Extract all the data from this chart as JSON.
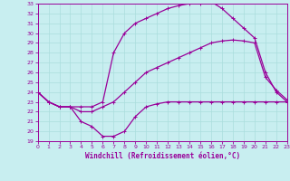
{
  "xlabel": "Windchill (Refroidissement éolien,°C)",
  "bg_color": "#c8eef0",
  "line_color": "#990099",
  "grid_color": "#aadddd",
  "xlim": [
    0,
    23
  ],
  "ylim": [
    19,
    33
  ],
  "xticks": [
    0,
    1,
    2,
    3,
    4,
    5,
    6,
    7,
    8,
    9,
    10,
    11,
    12,
    13,
    14,
    15,
    16,
    17,
    18,
    19,
    20,
    21,
    22,
    23
  ],
  "yticks": [
    19,
    20,
    21,
    22,
    23,
    24,
    25,
    26,
    27,
    28,
    29,
    30,
    31,
    32,
    33
  ],
  "line1_x": [
    0,
    1,
    2,
    3,
    4,
    5,
    6,
    7,
    8,
    9,
    10,
    11,
    12,
    13,
    14,
    15,
    16,
    17,
    18,
    19,
    20,
    21,
    22,
    23
  ],
  "line1_y": [
    24.0,
    23.0,
    22.5,
    22.5,
    21.0,
    20.5,
    19.5,
    19.5,
    20.0,
    21.5,
    22.5,
    22.8,
    23.0,
    23.0,
    23.0,
    23.0,
    23.0,
    23.0,
    23.0,
    23.0,
    23.0,
    23.0,
    23.0,
    23.0
  ],
  "line2_x": [
    0,
    1,
    2,
    3,
    4,
    5,
    6,
    7,
    8,
    9,
    10,
    11,
    12,
    13,
    14,
    15,
    16,
    17,
    18,
    19,
    20,
    21,
    22,
    23
  ],
  "line2_y": [
    24.0,
    23.0,
    22.5,
    22.5,
    22.5,
    22.5,
    23.0,
    28.0,
    30.0,
    31.0,
    31.5,
    32.0,
    32.5,
    32.8,
    33.0,
    33.0,
    33.2,
    32.5,
    31.5,
    30.5,
    29.5,
    26.0,
    24.0,
    23.0
  ],
  "line3_x": [
    0,
    1,
    2,
    3,
    4,
    5,
    6,
    7,
    8,
    9,
    10,
    11,
    12,
    13,
    14,
    15,
    16,
    17,
    18,
    19,
    20,
    21,
    22,
    23
  ],
  "line3_y": [
    24.0,
    23.0,
    22.5,
    22.5,
    22.0,
    22.0,
    22.5,
    23.0,
    24.0,
    25.0,
    26.0,
    26.5,
    27.0,
    27.5,
    28.0,
    28.5,
    29.0,
    29.2,
    29.3,
    29.2,
    29.0,
    25.5,
    24.2,
    23.2
  ]
}
